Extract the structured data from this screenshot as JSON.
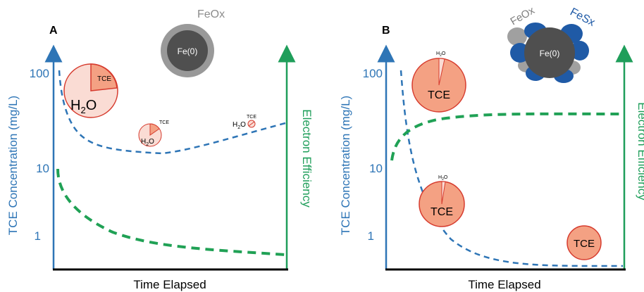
{
  "colors": {
    "tce_axis": "#2e75b6",
    "efficiency_axis": "#1f9e5a",
    "tce_curve": "#2e75b6",
    "efficiency_curve": "#20a155",
    "pie_fill_light": "#fadcd4",
    "pie_fill_dark": "#f4a183",
    "pie_edge": "#d63b2e",
    "fe_core": "#4f4f4f",
    "feox_shell": "#999999",
    "fesx_patch": "#1f5aa6"
  },
  "panel_a": {
    "letter": "A",
    "particle_shell_label": "FeOx",
    "particle_core_label": "Fe(0)",
    "y_left_label": "TCE Concentration (mg/L)",
    "y_right_label": "Electron Efficiency",
    "x_label": "Time Elapsed",
    "y_ticks": [
      "100",
      "10",
      "1"
    ],
    "pie_large": {
      "h2o": "H",
      "h2o_sub": "2",
      "h2o_end": "O",
      "tce": "TCE"
    },
    "pie_medium": {
      "h2o": "H",
      "h2o_sub": "2",
      "h2o_end": "O",
      "tce": "TCE"
    },
    "pie_small": {
      "h2o": "H",
      "h2o_sub": "2",
      "h2o_end": "O",
      "tce": "TCE"
    }
  },
  "panel_b": {
    "letter": "B",
    "particle_shell_label": "FeOx",
    "particle_sulfide_label": "FeSx",
    "particle_core_label": "Fe(0)",
    "y_left_label": "TCE Concentration (mg/L)",
    "y_right_label": "Electron Efficiency",
    "x_label": "Time Elapsed",
    "y_ticks": [
      "100",
      "10",
      "1"
    ],
    "pie_large": {
      "h2o": "H",
      "h2o_sub": "2",
      "h2o_end": "O",
      "tce": "TCE"
    },
    "pie_medium": {
      "h2o": "H",
      "h2o_sub": "2",
      "h2o_end": "O",
      "tce": "TCE"
    },
    "pie_small": {
      "tce": "TCE"
    }
  }
}
